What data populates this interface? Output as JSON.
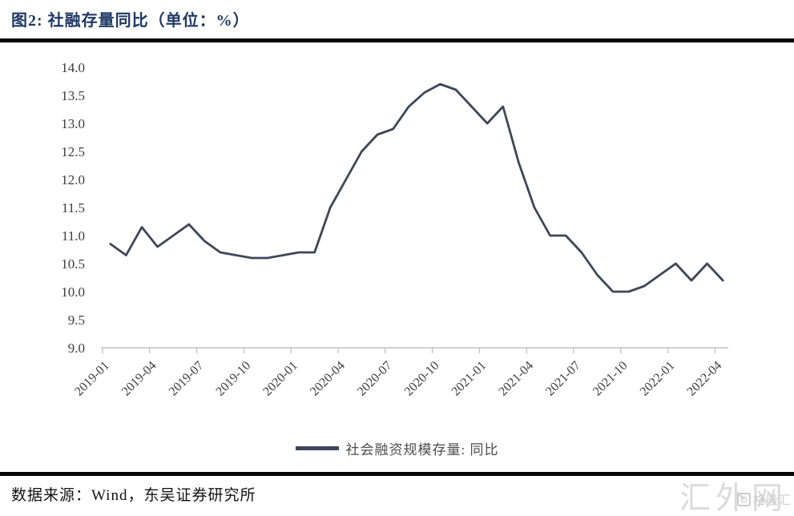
{
  "figure": {
    "title": "图2:  社融存量同比（单位：%）",
    "source": "数据来源：Wind，东吴证券研究所",
    "watermark_large": "汇外网",
    "watermark_logo": "格隆汇"
  },
  "legend": {
    "label": "社会融资规模存量: 同比"
  },
  "colors": {
    "line": "#3d4758",
    "title": "#1f3864",
    "axis": "#c3c3c3",
    "tick_text": "#3d3d3d",
    "rule": "#060606",
    "watermark": "#dbdbdb"
  },
  "chart_data": {
    "type": "line",
    "title": "图2: 社融存量同比（单位：%）",
    "xlabel": "",
    "ylabel": "%",
    "ylim": [
      9.0,
      14.0
    ],
    "ytick_step": 0.5,
    "ytick_labels": [
      "14.0",
      "13.5",
      "13.0",
      "12.5",
      "12.0",
      "11.5",
      "11.0",
      "10.5",
      "10.0",
      "9.5",
      "9.0"
    ],
    "grid": false,
    "legend_position": "bottom",
    "x": [
      "2019-01",
      "2019-02",
      "2019-03",
      "2019-04",
      "2019-05",
      "2019-06",
      "2019-07",
      "2019-08",
      "2019-09",
      "2019-10",
      "2019-11",
      "2019-12",
      "2020-01",
      "2020-02",
      "2020-03",
      "2020-04",
      "2020-05",
      "2020-06",
      "2020-07",
      "2020-08",
      "2020-09",
      "2020-10",
      "2020-11",
      "2020-12",
      "2021-01",
      "2021-02",
      "2021-03",
      "2021-04",
      "2021-05",
      "2021-06",
      "2021-07",
      "2021-08",
      "2021-09",
      "2021-10",
      "2021-11",
      "2021-12",
      "2022-01",
      "2022-02",
      "2022-03",
      "2022-04"
    ],
    "x_tick_labels": [
      "2019-01",
      "2019-04",
      "2019-07",
      "2019-10",
      "2020-01",
      "2020-04",
      "2020-07",
      "2020-10",
      "2021-01",
      "2021-04",
      "2021-07",
      "2021-10",
      "2022-01",
      "2022-04"
    ],
    "series": [
      {
        "name": "社会融资规模存量: 同比",
        "values": [
          10.85,
          10.65,
          11.15,
          10.8,
          11.0,
          11.2,
          10.9,
          10.7,
          10.65,
          10.6,
          10.6,
          10.65,
          10.7,
          10.7,
          11.5,
          12.0,
          12.5,
          12.8,
          12.9,
          13.3,
          13.55,
          13.7,
          13.6,
          13.3,
          13.0,
          13.3,
          12.3,
          11.5,
          11.0,
          11.0,
          10.7,
          10.3,
          10.0,
          10.0,
          10.1,
          10.3,
          10.5,
          10.2,
          10.5,
          10.2
        ]
      }
    ]
  }
}
